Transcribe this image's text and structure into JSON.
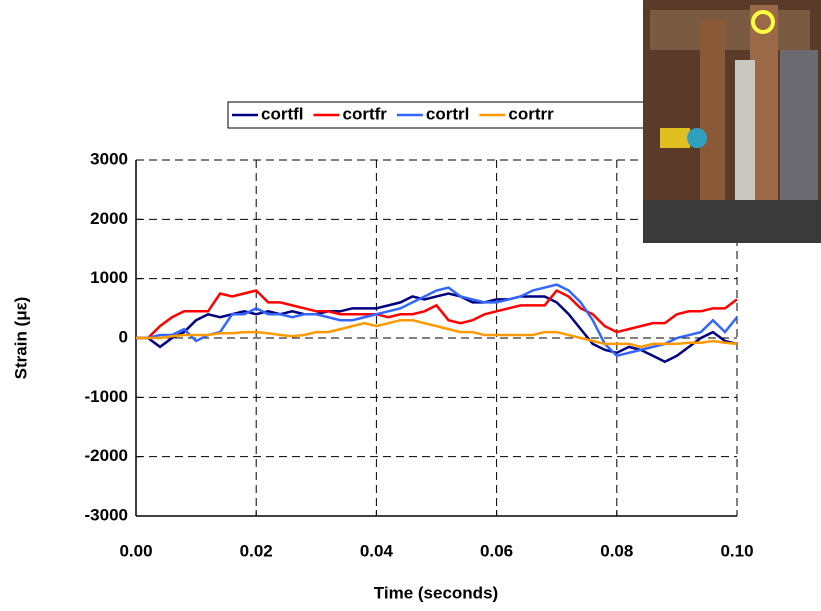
{
  "chart_data": {
    "type": "line",
    "xlabel": "Time (seconds)",
    "ylabel": "Strain (με)",
    "x": [
      0,
      0.002,
      0.004,
      0.006,
      0.008,
      0.01,
      0.012,
      0.014,
      0.016,
      0.018,
      0.02,
      0.022,
      0.024,
      0.026,
      0.028,
      0.03,
      0.032,
      0.034,
      0.036,
      0.038,
      0.04,
      0.042,
      0.044,
      0.046,
      0.048,
      0.05,
      0.052,
      0.054,
      0.056,
      0.058,
      0.06,
      0.062,
      0.064,
      0.066,
      0.068,
      0.07,
      0.072,
      0.074,
      0.076,
      0.078,
      0.08,
      0.082,
      0.084,
      0.086,
      0.088,
      0.09,
      0.092,
      0.094,
      0.096,
      0.098,
      0.1
    ],
    "series": [
      {
        "name": "cortfl",
        "color": "#000080",
        "values": [
          0,
          0,
          -150,
          0,
          100,
          300,
          400,
          350,
          400,
          450,
          400,
          450,
          400,
          450,
          400,
          400,
          450,
          450,
          500,
          500,
          500,
          550,
          600,
          700,
          650,
          700,
          750,
          700,
          600,
          600,
          650,
          650,
          700,
          700,
          700,
          600,
          400,
          150,
          -100,
          -200,
          -250,
          -150,
          -200,
          -300,
          -400,
          -300,
          -150,
          0,
          100,
          -50,
          -100
        ]
      },
      {
        "name": "cortfr",
        "color": "#ff0000",
        "values": [
          0,
          0,
          200,
          350,
          450,
          450,
          450,
          750,
          700,
          750,
          800,
          600,
          600,
          550,
          500,
          450,
          450,
          400,
          400,
          400,
          400,
          350,
          400,
          400,
          450,
          550,
          300,
          250,
          300,
          400,
          450,
          500,
          550,
          550,
          550,
          800,
          700,
          500,
          400,
          200,
          100,
          150,
          200,
          250,
          250,
          400,
          450,
          450,
          500,
          500,
          650
        ]
      },
      {
        "name": "cortrl",
        "color": "#3366ff",
        "values": [
          0,
          0,
          50,
          50,
          150,
          -50,
          50,
          100,
          400,
          400,
          500,
          400,
          400,
          350,
          400,
          400,
          350,
          300,
          300,
          350,
          400,
          450,
          500,
          600,
          700,
          800,
          850,
          700,
          650,
          600,
          600,
          650,
          700,
          800,
          850,
          900,
          800,
          600,
          300,
          -100,
          -300,
          -250,
          -200,
          -150,
          -100,
          0,
          50,
          100,
          300,
          100,
          350
        ]
      },
      {
        "name": "cortrr",
        "color": "#ff9900",
        "values": [
          0,
          0,
          0,
          30,
          50,
          50,
          50,
          80,
          80,
          100,
          100,
          80,
          50,
          30,
          50,
          100,
          100,
          150,
          200,
          250,
          200,
          250,
          300,
          300,
          250,
          200,
          150,
          100,
          100,
          50,
          50,
          50,
          50,
          50,
          100,
          100,
          50,
          0,
          -50,
          -100,
          -100,
          -100,
          -150,
          -100,
          -100,
          -100,
          -80,
          -80,
          -50,
          -80,
          -100
        ]
      }
    ],
    "xlim": [
      0,
      0.1
    ],
    "xticks": [
      {
        "value": 0,
        "label": "0.00"
      },
      {
        "value": 0.02,
        "label": "0.02"
      },
      {
        "value": 0.04,
        "label": "0.04"
      },
      {
        "value": 0.06,
        "label": "0.06"
      },
      {
        "value": 0.08,
        "label": "0.08"
      },
      {
        "value": 0.1,
        "label": "0.10"
      }
    ],
    "ylim": [
      -3000,
      3000
    ],
    "yticks": [
      -3000,
      -2000,
      -1000,
      0,
      1000,
      2000,
      3000
    ],
    "grid": true,
    "legend": "top"
  }
}
